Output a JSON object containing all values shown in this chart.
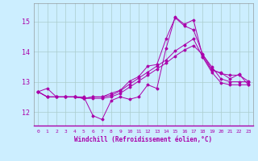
{
  "xlabel": "Windchill (Refroidissement éolien,°C)",
  "background_color": "#cceeff",
  "grid_color": "#aacccc",
  "line_color": "#aa00aa",
  "x_ticks": [
    0,
    1,
    2,
    3,
    4,
    5,
    6,
    7,
    8,
    9,
    10,
    11,
    12,
    13,
    14,
    15,
    16,
    17,
    18,
    19,
    20,
    21,
    22,
    23
  ],
  "ylim": [
    11.55,
    15.6
  ],
  "yticks": [
    12,
    13,
    14,
    15
  ],
  "series": [
    [
      12.67,
      12.78,
      12.5,
      12.5,
      12.5,
      12.5,
      11.88,
      11.75,
      12.38,
      12.5,
      12.42,
      12.5,
      12.9,
      12.78,
      14.1,
      15.15,
      14.9,
      15.05,
      13.85,
      13.38,
      13.3,
      13.1,
      13.25,
      12.9
    ],
    [
      12.67,
      12.5,
      12.5,
      12.5,
      12.5,
      12.45,
      12.45,
      12.45,
      12.5,
      12.62,
      12.82,
      13.02,
      13.22,
      13.42,
      13.62,
      13.85,
      14.05,
      14.2,
      13.9,
      13.5,
      13.1,
      13.0,
      13.0,
      13.0
    ],
    [
      12.67,
      12.5,
      12.5,
      12.5,
      12.5,
      12.45,
      12.5,
      12.5,
      12.55,
      12.7,
      12.92,
      13.12,
      13.32,
      13.52,
      13.72,
      14.02,
      14.22,
      14.42,
      13.82,
      13.32,
      12.97,
      12.9,
      12.9,
      12.9
    ],
    [
      12.67,
      12.5,
      12.5,
      12.5,
      12.5,
      12.45,
      12.5,
      12.5,
      12.62,
      12.72,
      13.02,
      13.17,
      13.52,
      13.57,
      14.42,
      15.12,
      14.85,
      14.72,
      13.92,
      13.42,
      13.27,
      13.22,
      13.22,
      13.02
    ]
  ]
}
